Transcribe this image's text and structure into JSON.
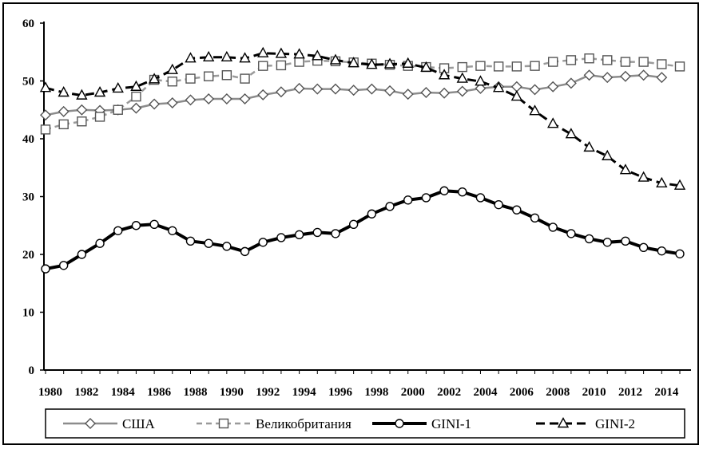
{
  "chart_data": {
    "type": "line",
    "title": "",
    "xlabel": "",
    "ylabel": "",
    "ylim": [
      0,
      60
    ],
    "yticks": [
      0,
      10,
      20,
      30,
      40,
      50,
      60
    ],
    "xticks": [
      1980,
      1982,
      1984,
      1986,
      1988,
      1990,
      1992,
      1994,
      1996,
      1998,
      2000,
      2002,
      2004,
      2006,
      2008,
      2010,
      2012,
      2014
    ],
    "xtick_labels": [
      "1980",
      "1982",
      "1984",
      "1986",
      "1988",
      "1990",
      "1992",
      "1994",
      "1996",
      "1998",
      "2000",
      "2002",
      "2004",
      "2006",
      "2008",
      "2010",
      "2012",
      "2014"
    ],
    "ytick_labels": [
      "0",
      "10",
      "20",
      "30",
      "40",
      "50",
      "60"
    ],
    "grid": false,
    "legend": "bottom",
    "series": [
      {
        "name": "США",
        "color": "#8c8c8c",
        "marker": "diamond",
        "line": "solid",
        "x": [
          1980,
          1981,
          1982,
          1983,
          1984,
          1985,
          1986,
          1987,
          1988,
          1989,
          1990,
          1991,
          1992,
          1993,
          1994,
          1995,
          1996,
          1997,
          1998,
          1999,
          2000,
          2001,
          2002,
          2003,
          2004,
          2005,
          2006,
          2007,
          2008,
          2009,
          2010,
          2011,
          2012,
          2013,
          2014
        ],
        "values": [
          44.1,
          44.7,
          45.0,
          44.9,
          45.0,
          45.3,
          46.0,
          46.2,
          46.7,
          46.9,
          46.9,
          46.9,
          47.6,
          48.1,
          48.7,
          48.6,
          48.6,
          48.4,
          48.6,
          48.3,
          47.7,
          48.0,
          47.9,
          48.2,
          48.7,
          49.0,
          49.0,
          48.5,
          49.0,
          49.6,
          51.0,
          50.6,
          50.8,
          51.0,
          50.6
        ]
      },
      {
        "name": "Великобритания",
        "color": "#9a9a9a",
        "marker": "square",
        "line": "dashed",
        "x": [
          1980,
          1981,
          1982,
          1983,
          1984,
          1985,
          1986,
          1987,
          1988,
          1989,
          1990,
          1991,
          1992,
          1993,
          1994,
          1995,
          1996,
          1997,
          1998,
          1999,
          2000,
          2001,
          2002,
          2003,
          2004,
          2005,
          2006,
          2007,
          2008,
          2009,
          2010,
          2011,
          2012,
          2013,
          2014,
          2015
        ],
        "values": [
          41.6,
          42.5,
          43.0,
          43.8,
          45.0,
          47.3,
          50.2,
          49.9,
          50.4,
          50.8,
          51.0,
          50.4,
          52.6,
          52.7,
          53.3,
          53.5,
          53.4,
          53.2,
          53.0,
          52.8,
          52.6,
          52.4,
          52.2,
          52.4,
          52.6,
          52.5,
          52.5,
          52.6,
          53.3,
          53.6,
          53.9,
          53.6,
          53.3,
          53.3,
          52.9,
          52.5
        ]
      },
      {
        "name": "GINI-1",
        "color": "#000000",
        "marker": "circle",
        "line": "solid-thick",
        "x": [
          1980,
          1981,
          1982,
          1983,
          1984,
          1985,
          1986,
          1987,
          1988,
          1989,
          1990,
          1991,
          1992,
          1993,
          1994,
          1995,
          1996,
          1997,
          1998,
          1999,
          2000,
          2001,
          2002,
          2003,
          2004,
          2005,
          2006,
          2007,
          2008,
          2009,
          2010,
          2011,
          2012,
          2013,
          2014,
          2015
        ],
        "values": [
          17.5,
          18.1,
          20.0,
          21.9,
          24.1,
          25.0,
          25.2,
          24.1,
          22.3,
          21.9,
          21.4,
          20.5,
          22.1,
          22.9,
          23.4,
          23.8,
          23.6,
          25.2,
          27.0,
          28.3,
          29.4,
          29.8,
          31.0,
          30.8,
          29.8,
          28.6,
          27.7,
          26.3,
          24.7,
          23.6,
          22.7,
          22.1,
          22.3,
          21.2,
          20.6,
          20.1
        ]
      },
      {
        "name": "GINI-2",
        "color": "#000000",
        "marker": "triangle",
        "line": "dashed-thick",
        "x": [
          1980,
          1981,
          1982,
          1983,
          1984,
          1985,
          1986,
          1987,
          1988,
          1989,
          1990,
          1991,
          1992,
          1993,
          1994,
          1995,
          1996,
          1997,
          1998,
          1999,
          2000,
          2001,
          2002,
          2003,
          2004,
          2005,
          2006,
          2007,
          2008,
          2009,
          2010,
          2011,
          2012,
          2013,
          2014,
          2015
        ],
        "values": [
          48.8,
          48.0,
          47.5,
          48.0,
          48.7,
          49.0,
          50.3,
          51.9,
          53.9,
          54.1,
          54.1,
          53.9,
          54.8,
          54.7,
          54.6,
          54.3,
          53.6,
          53.1,
          52.8,
          52.9,
          53.0,
          52.3,
          51.0,
          50.4,
          49.9,
          48.8,
          47.3,
          44.8,
          42.6,
          40.8,
          38.5,
          37.0,
          34.6,
          33.3,
          32.3,
          31.9
        ]
      }
    ]
  }
}
